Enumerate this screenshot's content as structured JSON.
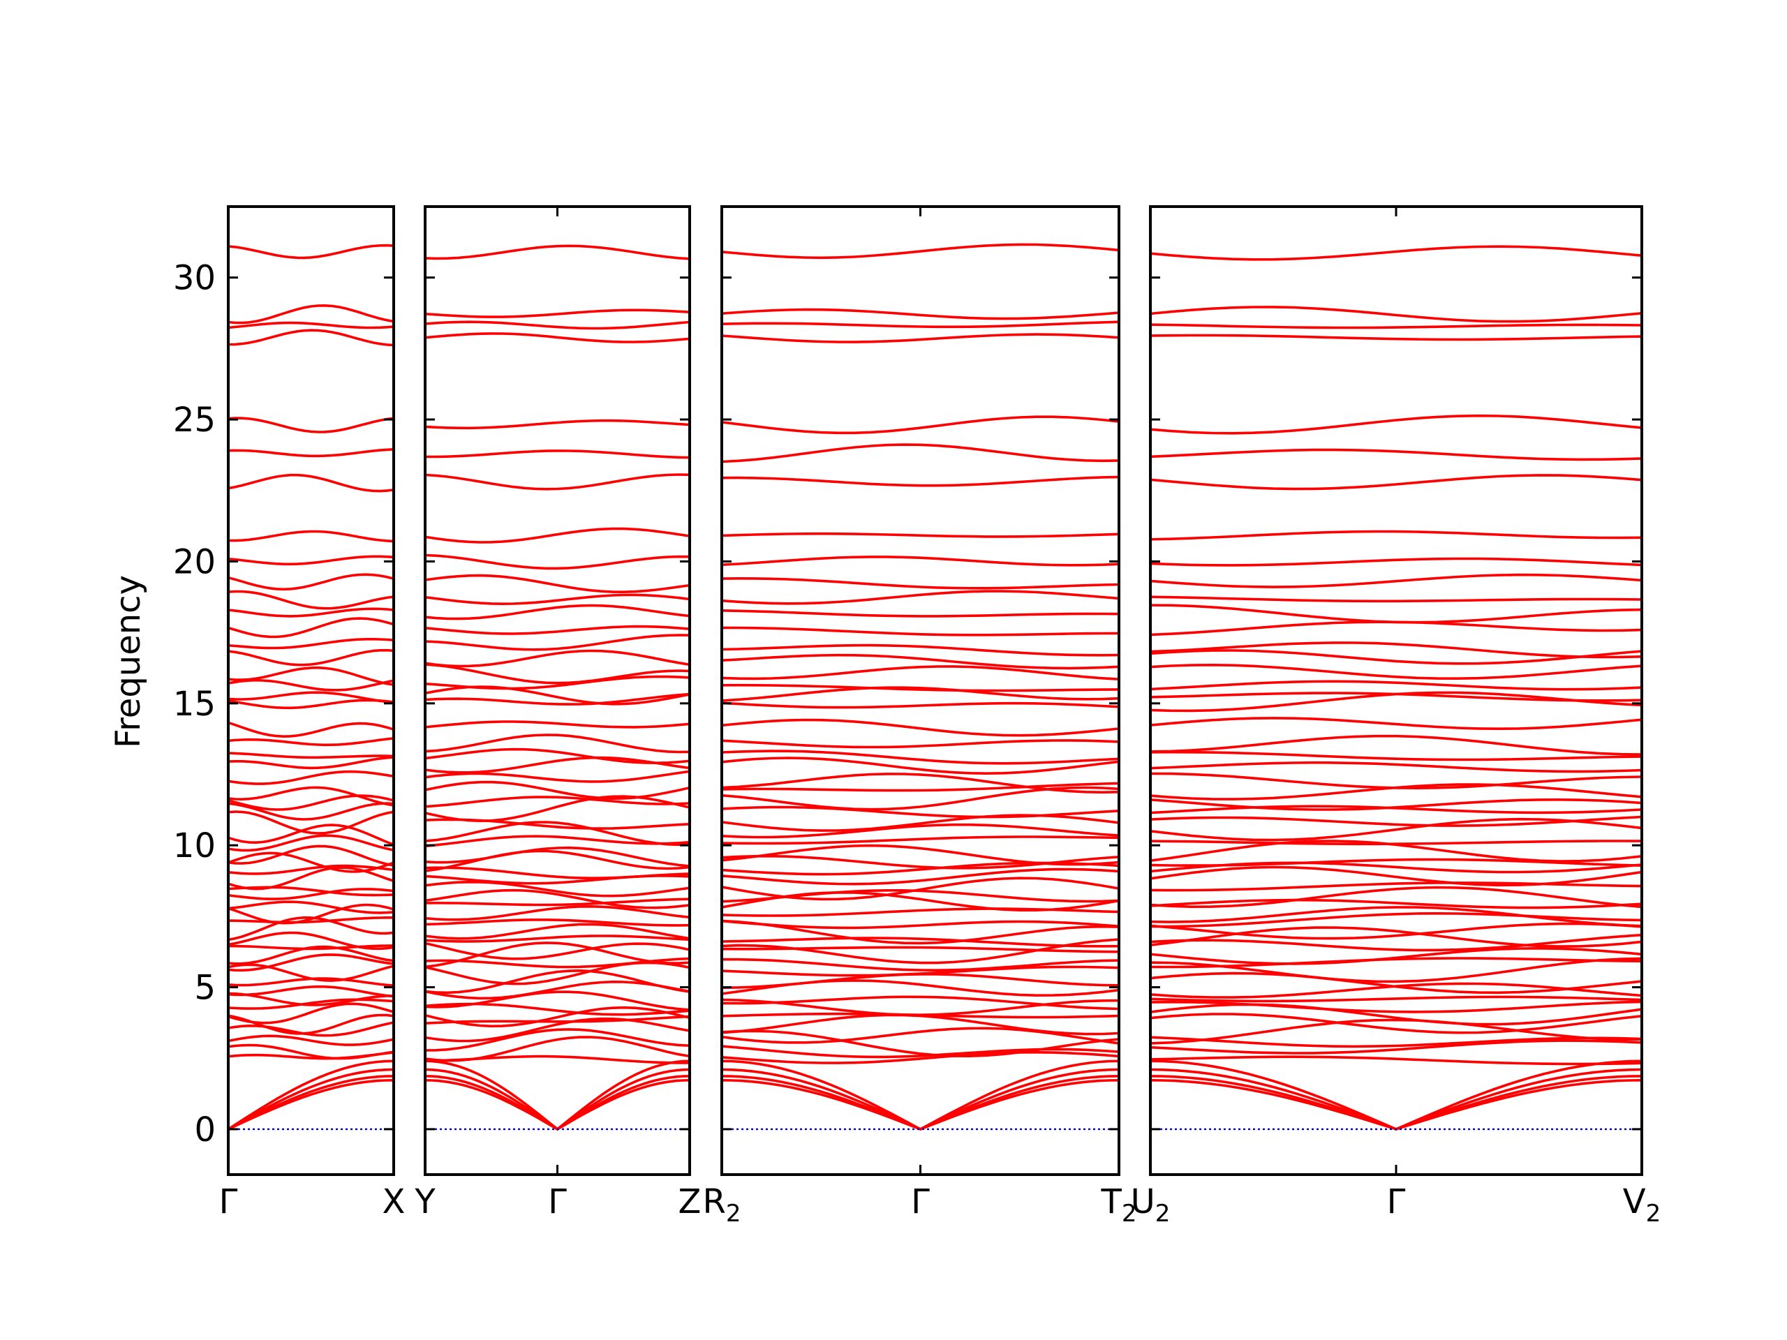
{
  "chart_data": {
    "type": "line",
    "title": "",
    "ylabel": "Frequency",
    "xlabel": "",
    "ylim": [
      -1.6,
      32.5
    ],
    "yticks": [
      0,
      5,
      10,
      15,
      20,
      25,
      30
    ],
    "grid": false,
    "legend": "none",
    "band_color": "#ff0000",
    "zero_line_color": "#0000cc",
    "panels": [
      {
        "labels": [
          {
            "text": "Γ",
            "sub": ""
          },
          {
            "text": "X",
            "sub": ""
          }
        ],
        "end_labels": [
          "Γ",
          "X"
        ]
      },
      {
        "labels": [
          {
            "text": "Y",
            "sub": ""
          },
          {
            "text": "Γ",
            "sub": ""
          },
          {
            "text": "Z",
            "sub": ""
          }
        ],
        "end_labels": [
          "Y",
          "Z"
        ]
      },
      {
        "labels": [
          {
            "text": "R",
            "sub": "2"
          },
          {
            "text": "Γ",
            "sub": ""
          },
          {
            "text": "T",
            "sub": "2"
          }
        ],
        "end_labels": [
          "R2",
          "T2"
        ]
      },
      {
        "labels": [
          {
            "text": "U",
            "sub": "2"
          },
          {
            "text": "Γ",
            "sub": ""
          },
          {
            "text": "V",
            "sub": "2"
          }
        ],
        "end_labels": [
          "U2",
          "V2"
        ]
      }
    ],
    "flat_band_frequencies": [
      30.9,
      28.7,
      28.3,
      27.9,
      24.8,
      23.8,
      22.8,
      20.9,
      20.0,
      19.3,
      18.7,
      18.2,
      17.6,
      17.0,
      16.6,
      16.1,
      15.6,
      15.3,
      15.0,
      14.2,
      13.6,
      13.2,
      12.8,
      12.3,
      11.9,
      11.5,
      11.2,
      10.8,
      10.5,
      10.1,
      9.7,
      9.4,
      9.1,
      8.8,
      8.5,
      8.2,
      7.9,
      7.6,
      7.3,
      7.0,
      6.7,
      6.4,
      6.1,
      5.8,
      5.5,
      5.2,
      4.9,
      4.6,
      4.3,
      4.0,
      3.7,
      3.4,
      3.1,
      2.8,
      2.5
    ],
    "acoustic_branch_end_frequencies": [
      2.4,
      2.0,
      1.7,
      1.5
    ]
  }
}
